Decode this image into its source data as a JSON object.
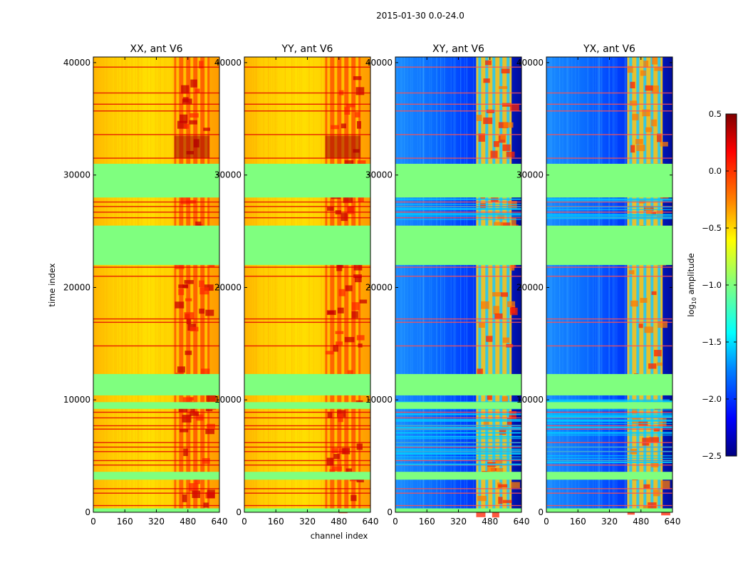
{
  "chart_data": {
    "type": "heatmap",
    "suptitle": "2015-01-30 0.0-24.0",
    "xlabel": "channel index",
    "ylabel": "time index",
    "xlim": [
      0,
      640
    ],
    "ylim": [
      0,
      40500
    ],
    "xticks": [
      0,
      160,
      320,
      480,
      640
    ],
    "yticks": [
      0,
      10000,
      20000,
      30000,
      40000
    ],
    "panels": [
      {
        "title": "XX, ant V6",
        "kind": "parallel"
      },
      {
        "title": "YY, ant V6",
        "kind": "parallel"
      },
      {
        "title": "XY, ant V6",
        "kind": "cross"
      },
      {
        "title": "YX, ant V6",
        "kind": "cross"
      }
    ],
    "flagged_time_ranges": [
      [
        31000,
        28000
      ],
      [
        25500,
        22000
      ],
      [
        12300,
        10400
      ],
      [
        3600,
        2900
      ]
    ],
    "rfi_channel_range": [
      410,
      590
    ],
    "colorbar": {
      "label": "log10 amplitude",
      "label_main": "log",
      "label_sub": "10",
      "label_rest": " amplitude",
      "range": [
        -2.5,
        0.5
      ],
      "ticks": [
        "0.5",
        "0.0",
        "−0.5",
        "−1.0",
        "−1.5",
        "−2.0",
        "−2.5"
      ],
      "tick_values": [
        0.5,
        0.0,
        -0.5,
        -1.0,
        -1.5,
        -2.0,
        -2.5
      ],
      "colormap": "jet",
      "colors": [
        "#000080",
        "#0000ff",
        "#0080ff",
        "#00ffff",
        "#7fff7f",
        "#ffff00",
        "#ff8000",
        "#ff0000",
        "#800000"
      ]
    }
  }
}
